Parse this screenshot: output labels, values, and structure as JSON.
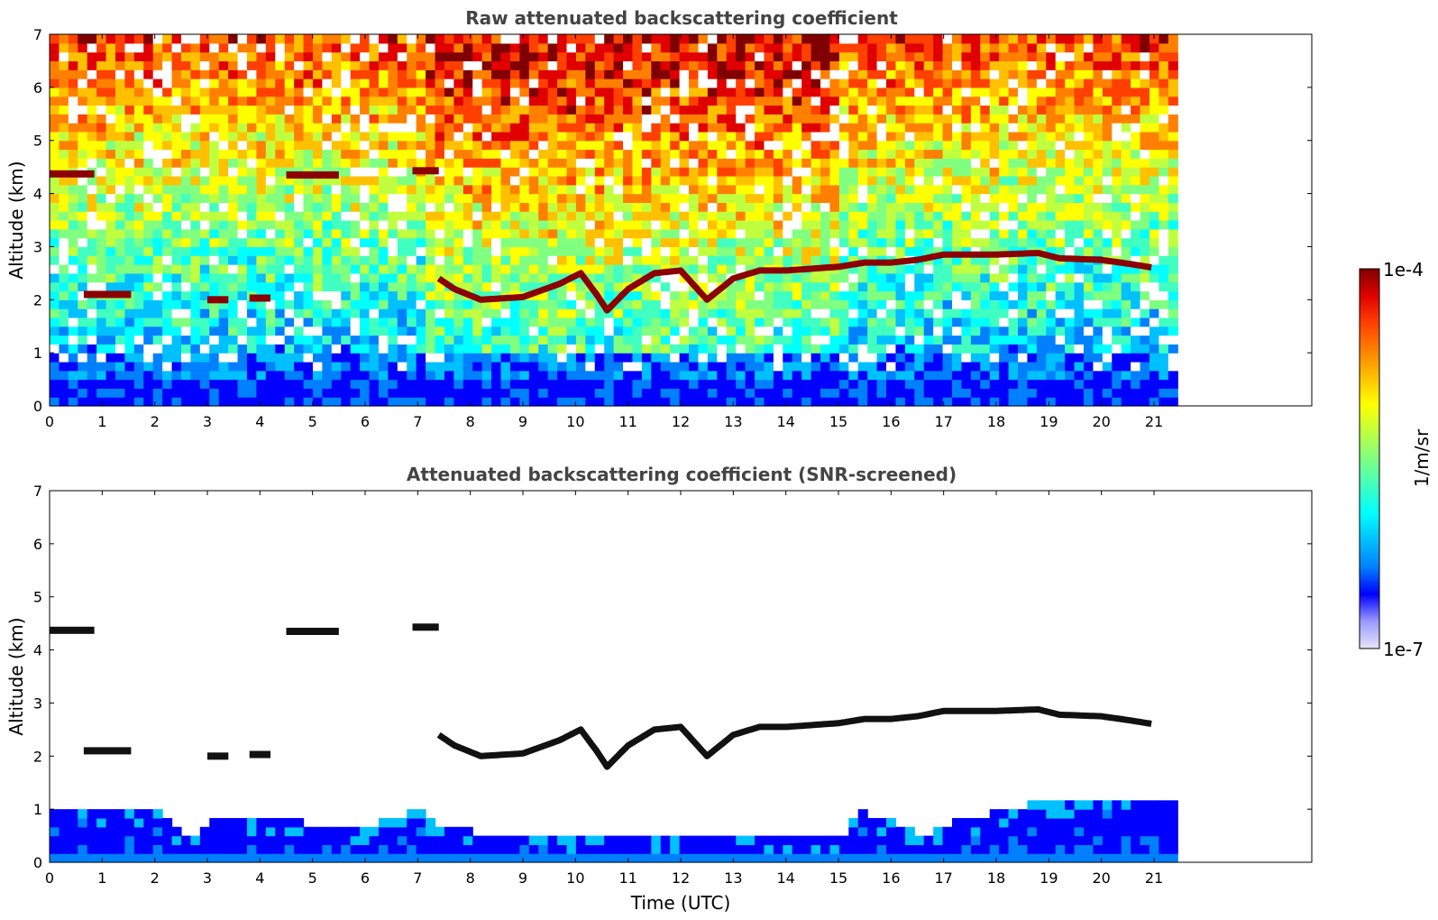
{
  "chart_data": [
    {
      "type": "heatmap",
      "title": "Raw attenuated backscattering coefficient",
      "xlabel": "",
      "ylabel": "Altitude (km)",
      "xlim": [
        0,
        24
      ],
      "ylim": [
        0,
        7
      ],
      "xticks": [
        0,
        1,
        2,
        3,
        4,
        5,
        6,
        7,
        8,
        9,
        10,
        11,
        12,
        13,
        14,
        15,
        16,
        17,
        18,
        19,
        20,
        21
      ],
      "yticks": [
        0,
        1,
        2,
        3,
        4,
        5,
        6,
        7
      ],
      "data_time_range": [
        0,
        21.45
      ],
      "colorscale": "log, 1e-7 to 1e-4, jet",
      "features": {
        "boundary_layer_top_km": [
          [
            0,
            0.9
          ],
          [
            2,
            0.85
          ],
          [
            4,
            0.75
          ],
          [
            5.5,
            0.6
          ],
          [
            6.5,
            0.8
          ],
          [
            7.5,
            0.5
          ],
          [
            10,
            0.45
          ],
          [
            15,
            0.45
          ],
          [
            16.5,
            0.6
          ],
          [
            18,
            0.9
          ],
          [
            21.4,
            1.0
          ]
        ],
        "cloud_layers": [
          {
            "start": 0.0,
            "end": 0.85,
            "alt_km": 4.37
          },
          {
            "start": 0.65,
            "end": 1.55,
            "alt_km": 2.1
          },
          {
            "start": 3.0,
            "end": 3.4,
            "alt_km": 2.0
          },
          {
            "start": 3.8,
            "end": 4.2,
            "alt_km": 2.03
          },
          {
            "start": 4.5,
            "end": 5.5,
            "alt_km": 4.35
          },
          {
            "start": 6.9,
            "end": 7.4,
            "alt_km": 4.43
          },
          {
            "start": 7.4,
            "end": 21.0,
            "alt_km_profile": [
              [
                7.4,
                2.4
              ],
              [
                7.7,
                2.2
              ],
              [
                8.2,
                2.0
              ],
              [
                9,
                2.05
              ],
              [
                9.7,
                2.3
              ],
              [
                10.1,
                2.5
              ],
              [
                10.4,
                2.1
              ],
              [
                10.6,
                1.8
              ],
              [
                11,
                2.2
              ],
              [
                11.5,
                2.5
              ],
              [
                12,
                2.55
              ],
              [
                12.5,
                2.0
              ],
              [
                13,
                2.4
              ],
              [
                13.5,
                2.55
              ],
              [
                14,
                2.55
              ],
              [
                15,
                2.62
              ],
              [
                15.5,
                2.7
              ],
              [
                16,
                2.7
              ],
              [
                16.5,
                2.75
              ],
              [
                17,
                2.85
              ],
              [
                17.5,
                2.85
              ],
              [
                18,
                2.85
              ],
              [
                18.8,
                2.88
              ],
              [
                19.2,
                2.78
              ],
              [
                20,
                2.75
              ],
              [
                20.5,
                2.68
              ],
              [
                21,
                2.6
              ]
            ]
          }
        ]
      }
    },
    {
      "type": "heatmap",
      "title": "Attenuated backscattering coefficient (SNR-screened)",
      "xlabel": "Time (UTC)",
      "ylabel": "Altitude (km)",
      "xlim": [
        0,
        24
      ],
      "ylim": [
        0,
        7
      ],
      "xticks": [
        0,
        1,
        2,
        3,
        4,
        5,
        6,
        7,
        8,
        9,
        10,
        11,
        12,
        13,
        14,
        15,
        16,
        17,
        18,
        19,
        20,
        21
      ],
      "yticks": [
        0,
        1,
        2,
        3,
        4,
        5,
        6,
        7
      ],
      "data_time_range": [
        0,
        21.45
      ],
      "colorscale": "log, 1e-7 to 1e-4, jet",
      "features": {
        "screened_boundary_layer_top_km": [
          [
            0,
            1.0
          ],
          [
            1,
            0.95
          ],
          [
            2,
            0.9
          ],
          [
            2.6,
            0.4
          ],
          [
            3,
            0.75
          ],
          [
            4,
            0.7
          ],
          [
            5,
            0.65
          ],
          [
            5.5,
            0.55
          ],
          [
            6.5,
            0.75
          ],
          [
            7.0,
            1.0
          ],
          [
            7.3,
            0.55
          ],
          [
            8,
            0.5
          ],
          [
            10,
            0.45
          ],
          [
            12,
            0.45
          ],
          [
            15,
            0.45
          ],
          [
            15.3,
            0.9
          ],
          [
            16,
            0.7
          ],
          [
            16.5,
            0.4
          ],
          [
            17,
            0.65
          ],
          [
            18,
            0.9
          ],
          [
            19,
            1.1
          ],
          [
            20,
            1.15
          ],
          [
            21.4,
            1.1
          ]
        ],
        "cloud_layers_same_as_raw": true
      }
    }
  ],
  "colorbar": {
    "label": "1/m/sr",
    "top_tick": "1e-4",
    "bottom_tick": "1e-7",
    "colors": [
      "#E6E6FA",
      "#9999FF",
      "#0000FF",
      "#0080FF",
      "#00C0FF",
      "#00FFFF",
      "#40FFC0",
      "#80FF80",
      "#C0FF40",
      "#FFFF00",
      "#FFC000",
      "#FF8000",
      "#FF4000",
      "#E00000",
      "#800000"
    ]
  }
}
